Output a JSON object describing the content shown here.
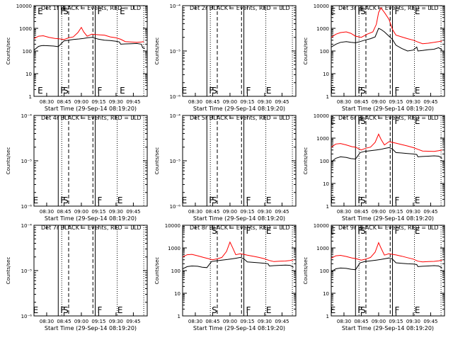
{
  "figure": {
    "xlabel_prefix": "Start Time (",
    "start_time": "29-Sep-14 08:19:20",
    "xlabel_suffix": ")",
    "title_suffix": "BLACK = Events, RED = LLD",
    "ylabel": "Counts/sec",
    "colors": {
      "events": "#000000",
      "lld": "#ff0000"
    }
  },
  "chart_data": [
    {
      "type": "line",
      "detector": "Det 1f",
      "has_data": true,
      "x_ticks": [
        "08:30",
        "08:45",
        "09:00",
        "09:15",
        "09:30",
        "09:45"
      ],
      "y_scale": "log",
      "ylim": [
        1,
        10000
      ],
      "y_tick_labels": [
        "1",
        "10",
        "100",
        "1000",
        "10000"
      ],
      "markers": [
        {
          "label": "E",
          "time": "08:24"
        },
        {
          "label": "F",
          "time": "08:40"
        },
        {
          "label": "S",
          "time": "08:46"
        },
        {
          "label": "F",
          "time": "09:12"
        },
        {
          "label": "E",
          "time": "09:35"
        }
      ],
      "dashed_times": [
        "08:49",
        "09:10"
      ],
      "dotted_times": [
        "08:43",
        "09:31",
        "09:54"
      ],
      "series": [
        {
          "name": "Events",
          "x": [
            "08:19",
            "08:23",
            "08:25",
            "08:27",
            "08:32",
            "08:36",
            "08:40",
            "08:45",
            "08:49",
            "08:53",
            "08:58",
            "09:02",
            "09:05",
            "09:09",
            "09:15",
            "09:20",
            "09:25",
            "09:30",
            "09:33",
            "09:34",
            "09:38",
            "09:43",
            "09:48",
            "09:52",
            "09:53",
            "09:55"
          ],
          "values": [
            110,
            160,
            170,
            175,
            170,
            165,
            155,
            280,
            300,
            320,
            340,
            360,
            380,
            400,
            330,
            300,
            290,
            270,
            250,
            200,
            205,
            210,
            215,
            200,
            140,
            130
          ]
        },
        {
          "name": "LLD",
          "x": [
            "08:19",
            "08:23",
            "08:27",
            "08:32",
            "08:37",
            "08:40",
            "08:45",
            "08:49",
            "08:53",
            "08:57",
            "09:00",
            "09:02",
            "09:05",
            "09:09",
            "09:15",
            "09:20",
            "09:25",
            "09:30",
            "09:34",
            "09:38",
            "09:43",
            "09:48",
            "09:52",
            "09:54"
          ],
          "values": [
            350,
            450,
            470,
            400,
            360,
            350,
            320,
            380,
            420,
            650,
            1100,
            700,
            450,
            550,
            520,
            500,
            420,
            380,
            330,
            260,
            250,
            240,
            250,
            260
          ]
        }
      ]
    },
    {
      "type": "line",
      "detector": "Det 2r",
      "has_data": false,
      "x_ticks": [
        "08:30",
        "08:45",
        "09:00",
        "09:15",
        "09:30",
        "09:45"
      ],
      "y_scale": "log",
      "ylim": [
        1e-06,
        0.0001
      ],
      "y_tick_labels": [
        "10⁻⁶",
        "10⁻⁵",
        "10⁻⁴"
      ],
      "markers": [
        {
          "label": "E",
          "time": "08:20"
        },
        {
          "label": "F",
          "time": "08:40"
        },
        {
          "label": "S",
          "time": "08:46"
        },
        {
          "label": "F",
          "time": "09:12"
        },
        {
          "label": "E",
          "time": "09:33"
        }
      ],
      "dashed_times": [
        "08:49",
        "09:10"
      ],
      "dotted_times": [
        "08:43",
        "09:31",
        "09:54"
      ],
      "series": []
    },
    {
      "type": "line",
      "detector": "Det 3r",
      "has_data": true,
      "x_ticks": [
        "08:30",
        "08:45",
        "09:00",
        "09:15",
        "09:30",
        "09:45"
      ],
      "y_scale": "log",
      "ylim": [
        1,
        10000
      ],
      "y_tick_labels": [
        "1",
        "10",
        "100",
        "1000",
        "10000"
      ],
      "markers": [
        {
          "label": "E",
          "time": "08:20"
        },
        {
          "label": "F",
          "time": "08:40"
        },
        {
          "label": "S",
          "time": "08:46"
        },
        {
          "label": "F",
          "time": "09:12"
        },
        {
          "label": "E",
          "time": "09:33"
        }
      ],
      "dashed_times": [
        "08:49",
        "09:10"
      ],
      "dotted_times": [
        "08:43",
        "09:31",
        "09:54"
      ],
      "series": [
        {
          "name": "Events",
          "x": [
            "08:19",
            "08:23",
            "08:27",
            "08:32",
            "08:36",
            "08:40",
            "08:44",
            "08:48",
            "08:53",
            "08:57",
            "09:00",
            "09:02",
            "09:05",
            "09:09",
            "09:12",
            "09:15",
            "09:20",
            "09:25",
            "09:30",
            "09:33",
            "09:34",
            "09:38",
            "09:43",
            "09:48",
            "09:52",
            "09:55"
          ],
          "values": [
            150,
            200,
            240,
            260,
            240,
            230,
            260,
            300,
            350,
            420,
            1000,
            900,
            700,
            450,
            320,
            180,
            130,
            100,
            110,
            150,
            100,
            105,
            115,
            120,
            140,
            110
          ]
        },
        {
          "name": "LLD",
          "x": [
            "08:19",
            "08:23",
            "08:27",
            "08:32",
            "08:36",
            "08:40",
            "08:45",
            "08:50",
            "08:55",
            "08:58",
            "09:00",
            "09:02",
            "09:05",
            "09:09",
            "09:12",
            "09:15",
            "09:20",
            "09:25",
            "09:30",
            "09:34",
            "09:38",
            "09:43",
            "09:48",
            "09:52",
            "09:55"
          ],
          "values": [
            400,
            550,
            650,
            700,
            600,
            450,
            400,
            550,
            700,
            1500,
            5000,
            8000,
            5000,
            2500,
            900,
            500,
            420,
            350,
            300,
            250,
            210,
            220,
            240,
            260,
            280
          ]
        }
      ]
    },
    {
      "type": "line",
      "detector": "Det 4r",
      "has_data": false,
      "x_ticks": [
        "08:30",
        "08:45",
        "09:00",
        "09:15",
        "09:30",
        "09:45"
      ],
      "y_scale": "log",
      "ylim": [
        1e-06,
        0.0001
      ],
      "y_tick_labels": [
        "10⁻⁶",
        "10⁻⁵",
        "10⁻⁴"
      ],
      "markers": [
        {
          "label": "E",
          "time": "08:20"
        },
        {
          "label": "F",
          "time": "08:40"
        },
        {
          "label": "S",
          "time": "08:46"
        },
        {
          "label": "F",
          "time": "09:12"
        },
        {
          "label": "E",
          "time": "09:33"
        }
      ],
      "dashed_times": [
        "08:49",
        "09:10"
      ],
      "dotted_times": [
        "08:43",
        "09:31",
        "09:54"
      ],
      "series": []
    },
    {
      "type": "line",
      "detector": "Det 5r",
      "has_data": false,
      "x_ticks": [
        "08:30",
        "08:45",
        "09:00",
        "09:15",
        "09:30",
        "09:45"
      ],
      "y_scale": "log",
      "ylim": [
        1e-06,
        0.0001
      ],
      "y_tick_labels": [
        "10⁻⁶",
        "10⁻⁵",
        "10⁻⁴"
      ],
      "markers": [
        {
          "label": "E",
          "time": "08:20"
        },
        {
          "label": "F",
          "time": "08:40"
        },
        {
          "label": "S",
          "time": "08:46"
        },
        {
          "label": "F",
          "time": "09:12"
        },
        {
          "label": "E",
          "time": "09:33"
        }
      ],
      "dashed_times": [
        "08:49",
        "09:10"
      ],
      "dotted_times": [
        "08:43",
        "09:31",
        "09:54"
      ],
      "series": []
    },
    {
      "type": "line",
      "detector": "Det 6r",
      "has_data": true,
      "x_ticks": [
        "08:30",
        "08:45",
        "09:00",
        "09:15",
        "09:30",
        "09:45"
      ],
      "y_scale": "log",
      "ylim": [
        1,
        10000
      ],
      "y_tick_labels": [
        "1",
        "10",
        "100",
        "1000",
        "10000"
      ],
      "markers": [
        {
          "label": "E",
          "time": "08:20"
        },
        {
          "label": "F",
          "time": "08:40"
        },
        {
          "label": "S",
          "time": "08:46"
        },
        {
          "label": "F",
          "time": "09:12"
        },
        {
          "label": "E",
          "time": "09:33"
        }
      ],
      "dashed_times": [
        "08:49",
        "09:10"
      ],
      "dotted_times": [
        "08:43",
        "09:31",
        "09:54"
      ],
      "series": [
        {
          "name": "Events",
          "x": [
            "08:19",
            "08:23",
            "08:27",
            "08:32",
            "08:36",
            "08:40",
            "08:44",
            "08:48",
            "08:53",
            "08:58",
            "09:02",
            "09:05",
            "09:09",
            "09:12",
            "09:15",
            "09:20",
            "09:25",
            "09:30",
            "09:33",
            "09:34",
            "09:38",
            "09:43",
            "09:48",
            "09:52",
            "09:55"
          ],
          "values": [
            90,
            130,
            150,
            140,
            125,
            120,
            230,
            260,
            280,
            300,
            320,
            350,
            380,
            330,
            230,
            220,
            210,
            200,
            190,
            150,
            155,
            160,
            165,
            160,
            130
          ]
        },
        {
          "name": "LLD",
          "x": [
            "08:19",
            "08:23",
            "08:27",
            "08:32",
            "08:37",
            "08:40",
            "08:45",
            "08:49",
            "08:53",
            "08:57",
            "09:00",
            "09:02",
            "09:05",
            "09:09",
            "09:12",
            "09:15",
            "09:20",
            "09:25",
            "09:30",
            "09:34",
            "09:38",
            "09:43",
            "09:48",
            "09:52",
            "09:55"
          ],
          "values": [
            400,
            550,
            580,
            500,
            420,
            400,
            300,
            360,
            400,
            650,
            1500,
            900,
            500,
            700,
            650,
            600,
            520,
            450,
            380,
            320,
            270,
            265,
            260,
            280,
            300
          ]
        }
      ]
    },
    {
      "type": "line",
      "detector": "Det 7r",
      "has_data": false,
      "x_ticks": [
        "08:30",
        "08:45",
        "09:00",
        "09:15",
        "09:30",
        "09:45"
      ],
      "y_scale": "log",
      "ylim": [
        1e-06,
        0.0001
      ],
      "y_tick_labels": [
        "10⁻⁶",
        "10⁻⁵",
        "10⁻⁴"
      ],
      "markers": [
        {
          "label": "E",
          "time": "08:20"
        },
        {
          "label": "F",
          "time": "08:40"
        },
        {
          "label": "S",
          "time": "08:46"
        },
        {
          "label": "F",
          "time": "09:12"
        },
        {
          "label": "E",
          "time": "09:33"
        }
      ],
      "dashed_times": [
        "08:49",
        "09:10"
      ],
      "dotted_times": [
        "08:43",
        "09:31",
        "09:54"
      ],
      "series": []
    },
    {
      "type": "line",
      "detector": "Det 8r",
      "has_data": true,
      "x_ticks": [
        "08:30",
        "08:45",
        "09:00",
        "09:15",
        "09:30",
        "09:45"
      ],
      "y_scale": "log",
      "ylim": [
        1,
        10000
      ],
      "y_tick_labels": [
        "1",
        "10",
        "100",
        "1000",
        "10000"
      ],
      "markers": [
        {
          "label": "S",
          "time": "08:46"
        },
        {
          "label": "F",
          "time": "09:12"
        },
        {
          "label": "E",
          "time": "09:33"
        }
      ],
      "dashed_times": [
        "08:49",
        "09:10"
      ],
      "dotted_times": [
        "08:43",
        "09:31",
        "09:54"
      ],
      "series": [
        {
          "name": "Events",
          "x": [
            "08:19",
            "08:23",
            "08:27",
            "08:32",
            "08:36",
            "08:40",
            "08:44",
            "08:48",
            "08:53",
            "08:58",
            "09:02",
            "09:05",
            "09:09",
            "09:12",
            "09:15",
            "09:20",
            "09:25",
            "09:30",
            "09:33",
            "09:34",
            "09:38",
            "09:43",
            "09:48",
            "09:52",
            "09:55"
          ],
          "values": [
            120,
            150,
            160,
            155,
            140,
            135,
            250,
            270,
            290,
            310,
            330,
            350,
            380,
            330,
            240,
            230,
            220,
            210,
            200,
            160,
            165,
            170,
            175,
            170,
            140
          ]
        },
        {
          "name": "LLD",
          "x": [
            "08:19",
            "08:23",
            "08:27",
            "08:32",
            "08:37",
            "08:40",
            "08:45",
            "08:49",
            "08:53",
            "08:57",
            "09:00",
            "09:02",
            "09:05",
            "09:09",
            "09:12",
            "09:15",
            "09:20",
            "09:25",
            "09:30",
            "09:34",
            "09:38",
            "09:43",
            "09:48",
            "09:52",
            "09:55"
          ],
          "values": [
            400,
            500,
            520,
            450,
            380,
            350,
            300,
            330,
            380,
            700,
            1800,
            1100,
            500,
            550,
            520,
            480,
            430,
            380,
            330,
            280,
            250,
            260,
            265,
            280,
            300
          ]
        }
      ]
    },
    {
      "type": "line",
      "detector": "Det 9r",
      "has_data": true,
      "x_ticks": [
        "08:30",
        "08:45",
        "09:00",
        "09:15",
        "09:30",
        "09:45"
      ],
      "y_scale": "log",
      "ylim": [
        1,
        10000
      ],
      "y_tick_labels": [
        "1",
        "10",
        "100",
        "1000",
        "10000"
      ],
      "markers": [
        {
          "label": "E",
          "time": "08:20"
        },
        {
          "label": "F",
          "time": "08:40"
        },
        {
          "label": "S",
          "time": "08:46"
        },
        {
          "label": "F",
          "time": "09:12"
        },
        {
          "label": "E",
          "time": "09:33"
        }
      ],
      "dashed_times": [
        "08:49",
        "09:10"
      ],
      "dotted_times": [
        "08:43",
        "09:31",
        "09:54"
      ],
      "series": [
        {
          "name": "Events",
          "x": [
            "08:19",
            "08:23",
            "08:27",
            "08:32",
            "08:36",
            "08:40",
            "08:44",
            "08:48",
            "08:53",
            "08:58",
            "09:02",
            "09:05",
            "09:09",
            "09:12",
            "09:15",
            "09:20",
            "09:25",
            "09:30",
            "09:33",
            "09:34",
            "09:38",
            "09:43",
            "09:48",
            "09:52",
            "09:55"
          ],
          "values": [
            90,
            120,
            130,
            125,
            115,
            110,
            220,
            250,
            270,
            290,
            310,
            330,
            360,
            320,
            220,
            210,
            200,
            195,
            185,
            150,
            155,
            160,
            165,
            160,
            130
          ]
        },
        {
          "name": "LLD",
          "x": [
            "08:19",
            "08:23",
            "08:27",
            "08:32",
            "08:37",
            "08:40",
            "08:45",
            "08:49",
            "08:53",
            "08:57",
            "09:00",
            "09:02",
            "09:05",
            "09:09",
            "09:12",
            "09:15",
            "09:20",
            "09:25",
            "09:30",
            "09:34",
            "09:38",
            "09:43",
            "09:48",
            "09:52",
            "09:55"
          ],
          "values": [
            350,
            450,
            470,
            420,
            360,
            340,
            290,
            320,
            380,
            650,
            1700,
            1000,
            480,
            560,
            520,
            490,
            430,
            370,
            320,
            260,
            240,
            250,
            255,
            270,
            290
          ]
        }
      ]
    }
  ]
}
